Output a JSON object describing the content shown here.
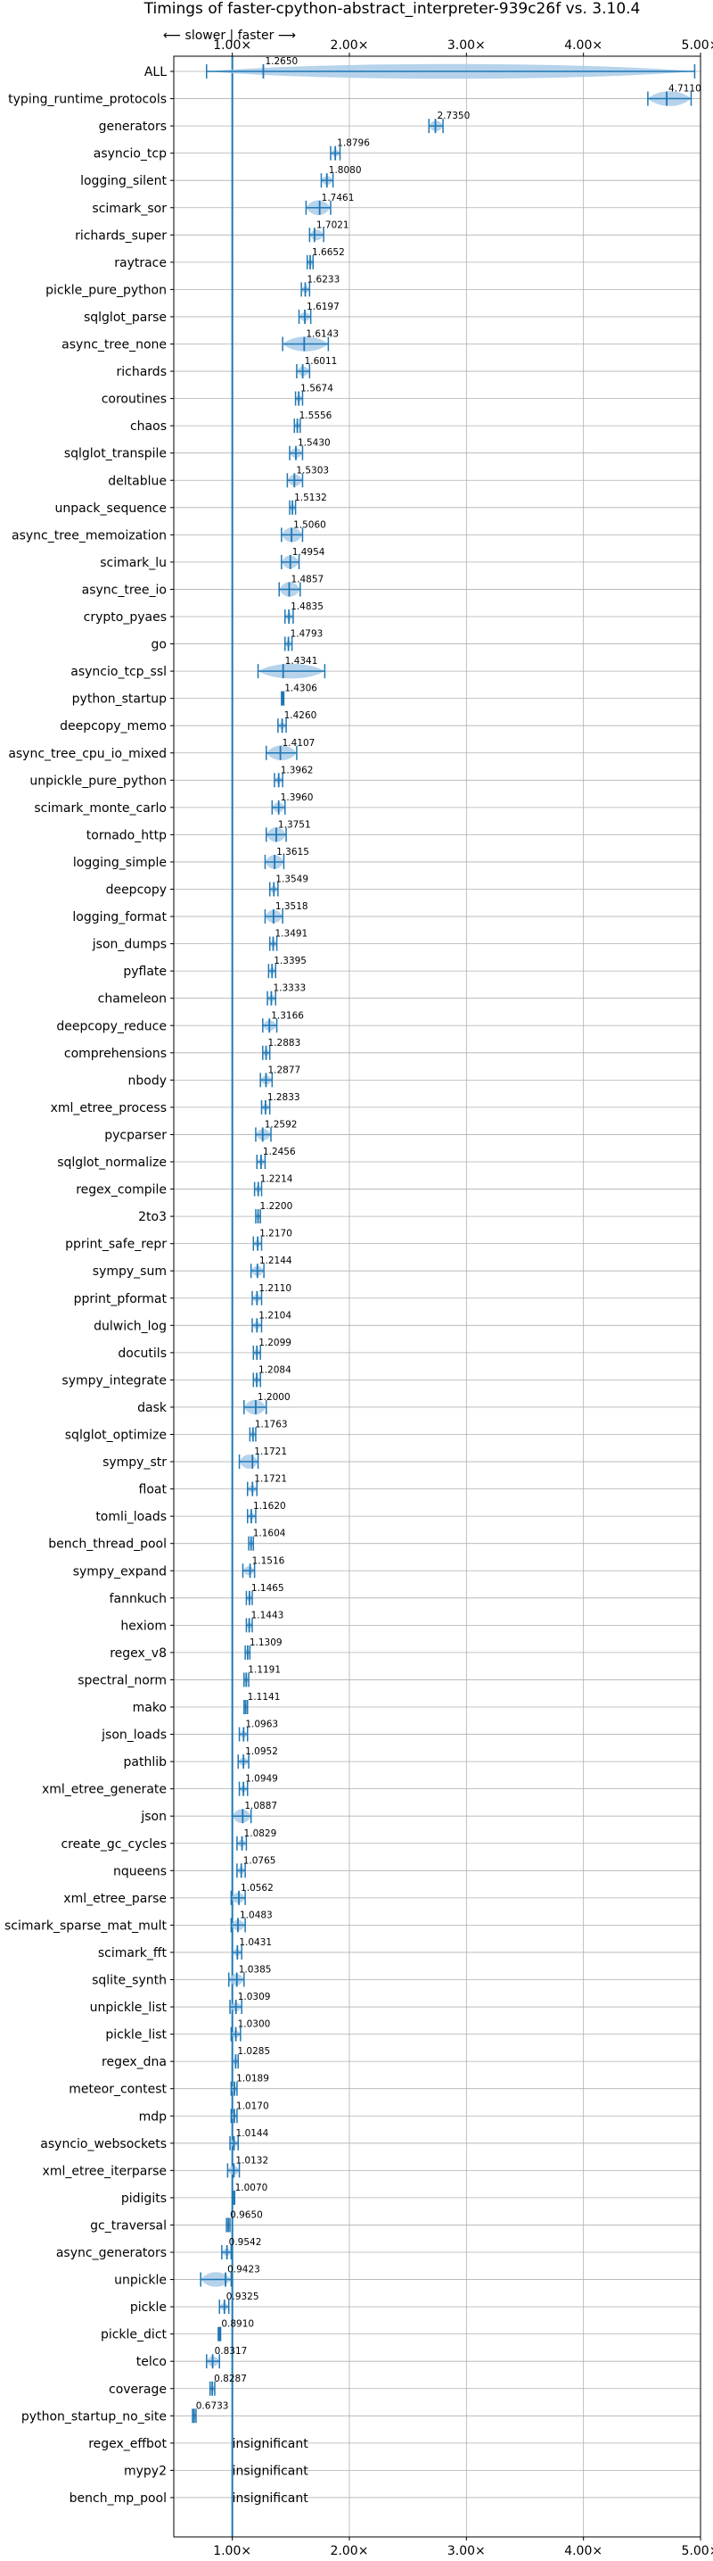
{
  "chart_data": {
    "type": "violin",
    "title": "Timings of faster-cpython-abstract_interpreter-939c26f vs. 3.10.4",
    "direction_label": "⟵ slower  |  faster ⟶",
    "xlim": [
      0.5,
      5.0
    ],
    "x_ticks": [
      {
        "value": 1.0,
        "label": "1.00×"
      },
      {
        "value": 2.0,
        "label": "2.00×"
      },
      {
        "value": 3.0,
        "label": "3.00×"
      },
      {
        "value": 4.0,
        "label": "4.00×"
      },
      {
        "value": 5.0,
        "label": "5.00×"
      }
    ],
    "grid": true,
    "reference_line": 1.0,
    "accent_color": "#1f77b4",
    "violin_color": "#a9cbe8",
    "median_color": "#d62728",
    "benchmarks": [
      {
        "name": "ALL",
        "label": "1.2650",
        "value": 1.265,
        "low": 0.78,
        "high": 4.95
      },
      {
        "name": "typing_runtime_protocols",
        "label": "4.7110",
        "value": 4.711,
        "low": 4.55,
        "high": 4.92
      },
      {
        "name": "generators",
        "label": "2.7350",
        "value": 2.735,
        "low": 2.68,
        "high": 2.8
      },
      {
        "name": "asyncio_tcp",
        "label": "1.8796",
        "value": 1.8796,
        "low": 1.84,
        "high": 1.92
      },
      {
        "name": "logging_silent",
        "label": "1.8080",
        "value": 1.808,
        "low": 1.76,
        "high": 1.86
      },
      {
        "name": "scimark_sor",
        "label": "1.7461",
        "value": 1.7461,
        "low": 1.63,
        "high": 1.84
      },
      {
        "name": "richards_super",
        "label": "1.7021",
        "value": 1.7021,
        "low": 1.66,
        "high": 1.78
      },
      {
        "name": "raytrace",
        "label": "1.6652",
        "value": 1.6652,
        "low": 1.64,
        "high": 1.69
      },
      {
        "name": "pickle_pure_python",
        "label": "1.6233",
        "value": 1.6233,
        "low": 1.59,
        "high": 1.66
      },
      {
        "name": "sqlglot_parse",
        "label": "1.6197",
        "value": 1.6197,
        "low": 1.57,
        "high": 1.67
      },
      {
        "name": "async_tree_none",
        "label": "1.6143",
        "value": 1.6143,
        "low": 1.43,
        "high": 1.82
      },
      {
        "name": "richards",
        "label": "1.6011",
        "value": 1.6011,
        "low": 1.55,
        "high": 1.66
      },
      {
        "name": "coroutines",
        "label": "1.5674",
        "value": 1.5674,
        "low": 1.54,
        "high": 1.6
      },
      {
        "name": "chaos",
        "label": "1.5556",
        "value": 1.5556,
        "low": 1.53,
        "high": 1.58
      },
      {
        "name": "sqlglot_transpile",
        "label": "1.5430",
        "value": 1.543,
        "low": 1.49,
        "high": 1.6
      },
      {
        "name": "deltablue",
        "label": "1.5303",
        "value": 1.5303,
        "low": 1.47,
        "high": 1.6
      },
      {
        "name": "unpack_sequence",
        "label": "1.5132",
        "value": 1.5132,
        "low": 1.49,
        "high": 1.54
      },
      {
        "name": "async_tree_memoization",
        "label": "1.5060",
        "value": 1.506,
        "low": 1.42,
        "high": 1.6
      },
      {
        "name": "scimark_lu",
        "label": "1.4954",
        "value": 1.4954,
        "low": 1.42,
        "high": 1.57
      },
      {
        "name": "async_tree_io",
        "label": "1.4857",
        "value": 1.4857,
        "low": 1.4,
        "high": 1.58
      },
      {
        "name": "crypto_pyaes",
        "label": "1.4835",
        "value": 1.4835,
        "low": 1.45,
        "high": 1.52
      },
      {
        "name": "go",
        "label": "1.4793",
        "value": 1.4793,
        "low": 1.45,
        "high": 1.51
      },
      {
        "name": "asyncio_tcp_ssl",
        "label": "1.4341",
        "value": 1.4341,
        "low": 1.22,
        "high": 1.79
      },
      {
        "name": "python_startup",
        "label": "1.4306",
        "value": 1.4306,
        "low": 1.42,
        "high": 1.44
      },
      {
        "name": "deepcopy_memo",
        "label": "1.4260",
        "value": 1.426,
        "low": 1.39,
        "high": 1.46
      },
      {
        "name": "async_tree_cpu_io_mixed",
        "label": "1.4107",
        "value": 1.4107,
        "low": 1.29,
        "high": 1.55
      },
      {
        "name": "unpickle_pure_python",
        "label": "1.3962",
        "value": 1.3962,
        "low": 1.36,
        "high": 1.43
      },
      {
        "name": "scimark_monte_carlo",
        "label": "1.3960",
        "value": 1.396,
        "low": 1.34,
        "high": 1.45
      },
      {
        "name": "tornado_http",
        "label": "1.3751",
        "value": 1.3751,
        "low": 1.29,
        "high": 1.46
      },
      {
        "name": "logging_simple",
        "label": "1.3615",
        "value": 1.3615,
        "low": 1.28,
        "high": 1.44
      },
      {
        "name": "deepcopy",
        "label": "1.3549",
        "value": 1.3549,
        "low": 1.32,
        "high": 1.39
      },
      {
        "name": "logging_format",
        "label": "1.3518",
        "value": 1.3518,
        "low": 1.28,
        "high": 1.43
      },
      {
        "name": "json_dumps",
        "label": "1.3491",
        "value": 1.3491,
        "low": 1.32,
        "high": 1.38
      },
      {
        "name": "pyflate",
        "label": "1.3395",
        "value": 1.3395,
        "low": 1.31,
        "high": 1.37
      },
      {
        "name": "chameleon",
        "label": "1.3333",
        "value": 1.3333,
        "low": 1.3,
        "high": 1.37
      },
      {
        "name": "deepcopy_reduce",
        "label": "1.3166",
        "value": 1.3166,
        "low": 1.26,
        "high": 1.38
      },
      {
        "name": "comprehensions",
        "label": "1.2883",
        "value": 1.2883,
        "low": 1.26,
        "high": 1.32
      },
      {
        "name": "nbody",
        "label": "1.2877",
        "value": 1.2877,
        "low": 1.24,
        "high": 1.34
      },
      {
        "name": "xml_etree_process",
        "label": "1.2833",
        "value": 1.2833,
        "low": 1.25,
        "high": 1.32
      },
      {
        "name": "pycparser",
        "label": "1.2592",
        "value": 1.2592,
        "low": 1.2,
        "high": 1.33
      },
      {
        "name": "sqlglot_normalize",
        "label": "1.2456",
        "value": 1.2456,
        "low": 1.21,
        "high": 1.28
      },
      {
        "name": "regex_compile",
        "label": "1.2214",
        "value": 1.2214,
        "low": 1.19,
        "high": 1.25
      },
      {
        "name": "2to3",
        "label": "1.2200",
        "value": 1.22,
        "low": 1.2,
        "high": 1.24
      },
      {
        "name": "pprint_safe_repr",
        "label": "1.2170",
        "value": 1.217,
        "low": 1.18,
        "high": 1.25
      },
      {
        "name": "sympy_sum",
        "label": "1.2144",
        "value": 1.2144,
        "low": 1.16,
        "high": 1.27
      },
      {
        "name": "pprint_pformat",
        "label": "1.2110",
        "value": 1.211,
        "low": 1.17,
        "high": 1.25
      },
      {
        "name": "dulwich_log",
        "label": "1.2104",
        "value": 1.2104,
        "low": 1.17,
        "high": 1.25
      },
      {
        "name": "docutils",
        "label": "1.2099",
        "value": 1.2099,
        "low": 1.18,
        "high": 1.24
      },
      {
        "name": "sympy_integrate",
        "label": "1.2084",
        "value": 1.2084,
        "low": 1.18,
        "high": 1.24
      },
      {
        "name": "dask",
        "label": "1.2000",
        "value": 1.2,
        "low": 1.1,
        "high": 1.29
      },
      {
        "name": "sqlglot_optimize",
        "label": "1.1763",
        "value": 1.1763,
        "low": 1.15,
        "high": 1.2
      },
      {
        "name": "sympy_str",
        "label": "1.1721",
        "value": 1.1721,
        "low": 1.06,
        "high": 1.22
      },
      {
        "name": "float",
        "label": "1.1721",
        "value": 1.1721,
        "low": 1.13,
        "high": 1.21
      },
      {
        "name": "tomli_loads",
        "label": "1.1620",
        "value": 1.162,
        "low": 1.13,
        "high": 1.2
      },
      {
        "name": "bench_thread_pool",
        "label": "1.1604",
        "value": 1.1604,
        "low": 1.14,
        "high": 1.18
      },
      {
        "name": "sympy_expand",
        "label": "1.1516",
        "value": 1.1516,
        "low": 1.09,
        "high": 1.19
      },
      {
        "name": "fannkuch",
        "label": "1.1465",
        "value": 1.1465,
        "low": 1.12,
        "high": 1.17
      },
      {
        "name": "hexiom",
        "label": "1.1443",
        "value": 1.1443,
        "low": 1.12,
        "high": 1.17
      },
      {
        "name": "regex_v8",
        "label": "1.1309",
        "value": 1.1309,
        "low": 1.11,
        "high": 1.15
      },
      {
        "name": "spectral_norm",
        "label": "1.1191",
        "value": 1.1191,
        "low": 1.1,
        "high": 1.14
      },
      {
        "name": "mako",
        "label": "1.1141",
        "value": 1.1141,
        "low": 1.1,
        "high": 1.13
      },
      {
        "name": "json_loads",
        "label": "1.0963",
        "value": 1.0963,
        "low": 1.06,
        "high": 1.13
      },
      {
        "name": "pathlib",
        "label": "1.0952",
        "value": 1.0952,
        "low": 1.05,
        "high": 1.14
      },
      {
        "name": "xml_etree_generate",
        "label": "1.0949",
        "value": 1.0949,
        "low": 1.06,
        "high": 1.13
      },
      {
        "name": "json",
        "label": "1.0887",
        "value": 1.0887,
        "low": 1.0,
        "high": 1.16
      },
      {
        "name": "create_gc_cycles",
        "label": "1.0829",
        "value": 1.0829,
        "low": 1.04,
        "high": 1.12
      },
      {
        "name": "nqueens",
        "label": "1.0765",
        "value": 1.0765,
        "low": 1.04,
        "high": 1.11
      },
      {
        "name": "xml_etree_parse",
        "label": "1.0562",
        "value": 1.0562,
        "low": 0.99,
        "high": 1.11
      },
      {
        "name": "scimark_sparse_mat_mult",
        "label": "1.0483",
        "value": 1.0483,
        "low": 0.99,
        "high": 1.11
      },
      {
        "name": "scimark_fft",
        "label": "1.0431",
        "value": 1.0431,
        "low": 1.0,
        "high": 1.08
      },
      {
        "name": "sqlite_synth",
        "label": "1.0385",
        "value": 1.0385,
        "low": 0.97,
        "high": 1.1
      },
      {
        "name": "unpickle_list",
        "label": "1.0309",
        "value": 1.0309,
        "low": 0.98,
        "high": 1.08
      },
      {
        "name": "pickle_list",
        "label": "1.0300",
        "value": 1.03,
        "low": 0.99,
        "high": 1.07
      },
      {
        "name": "regex_dna",
        "label": "1.0285",
        "value": 1.0285,
        "low": 1.0,
        "high": 1.05
      },
      {
        "name": "meteor_contest",
        "label": "1.0189",
        "value": 1.0189,
        "low": 0.99,
        "high": 1.04
      },
      {
        "name": "mdp",
        "label": "1.0170",
        "value": 1.017,
        "low": 0.99,
        "high": 1.04
      },
      {
        "name": "asyncio_websockets",
        "label": "1.0144",
        "value": 1.0144,
        "low": 0.98,
        "high": 1.05
      },
      {
        "name": "xml_etree_iterparse",
        "label": "1.0132",
        "value": 1.0132,
        "low": 0.96,
        "high": 1.06
      },
      {
        "name": "pidigits",
        "label": "1.0070",
        "value": 1.007,
        "low": 1.0,
        "high": 1.02
      },
      {
        "name": "gc_traversal",
        "label": "0.9650",
        "value": 0.965,
        "low": 0.95,
        "high": 0.98
      },
      {
        "name": "async_generators",
        "label": "0.9542",
        "value": 0.9542,
        "low": 0.91,
        "high": 0.99
      },
      {
        "name": "unpickle",
        "label": "0.9423",
        "value": 0.9423,
        "low": 0.73,
        "high": 0.99
      },
      {
        "name": "pickle",
        "label": "0.9325",
        "value": 0.9325,
        "low": 0.89,
        "high": 0.97
      },
      {
        "name": "pickle_dict",
        "label": "0.8910",
        "value": 0.891,
        "low": 0.88,
        "high": 0.9
      },
      {
        "name": "telco",
        "label": "0.8317",
        "value": 0.8317,
        "low": 0.78,
        "high": 0.89
      },
      {
        "name": "coverage",
        "label": "0.8287",
        "value": 0.8287,
        "low": 0.81,
        "high": 0.85
      },
      {
        "name": "python_startup_no_site",
        "label": "0.6733",
        "value": 0.6733,
        "low": 0.66,
        "high": 0.69
      },
      {
        "name": "regex_effbot",
        "label": "insignificant",
        "value": null,
        "low": null,
        "high": null
      },
      {
        "name": "mypy2",
        "label": "insignificant",
        "value": null,
        "low": null,
        "high": null
      },
      {
        "name": "bench_mp_pool",
        "label": "insignificant",
        "value": null,
        "low": null,
        "high": null
      }
    ]
  }
}
